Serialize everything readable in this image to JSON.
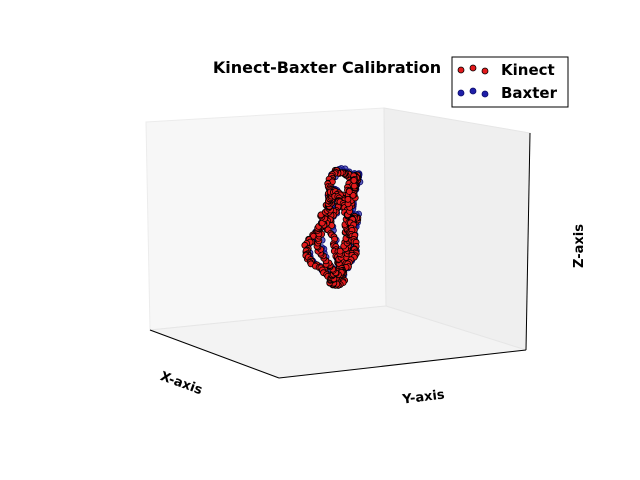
{
  "chart_data": {
    "type": "scatter",
    "projection": "3d",
    "title": "Kinect-Baxter Calibration",
    "xlabel": "X-axis",
    "ylabel": "Y-axis",
    "zlabel": "Z-axis",
    "grid": false,
    "tick_labels_visible": false,
    "legend": "top-right",
    "xlim": [
      -1,
      1
    ],
    "ylim": [
      -1,
      1
    ],
    "zlim": [
      -1,
      1
    ],
    "series": [
      {
        "name": "Kinect",
        "color": "#e31a1c",
        "edge": "#000000",
        "marker": "circle"
      },
      {
        "name": "Baxter",
        "color": "#1f1fa8",
        "edge": "#0a0a6a",
        "marker": "circle"
      }
    ],
    "trajectory": {
      "description": "continuous calibration path sampled by both sensors",
      "points": [
        [
          -0.05,
          0.1,
          0.55
        ],
        [
          0.05,
          0.12,
          0.62
        ],
        [
          0.15,
          0.15,
          0.66
        ],
        [
          0.25,
          0.2,
          0.64
        ],
        [
          0.35,
          0.28,
          0.55
        ],
        [
          0.42,
          0.35,
          0.4
        ],
        [
          0.46,
          0.4,
          0.2
        ],
        [
          0.47,
          0.45,
          0.0
        ],
        [
          0.48,
          0.5,
          -0.15
        ],
        [
          0.5,
          0.55,
          -0.28
        ],
        [
          0.45,
          0.45,
          -0.35
        ],
        [
          0.35,
          0.3,
          -0.38
        ],
        [
          0.2,
          0.15,
          -0.4
        ],
        [
          0.05,
          0.05,
          -0.4
        ],
        [
          -0.1,
          -0.05,
          -0.38
        ],
        [
          -0.25,
          -0.15,
          -0.3
        ],
        [
          -0.35,
          -0.25,
          -0.15
        ],
        [
          -0.4,
          -0.3,
          0.0
        ],
        [
          -0.42,
          -0.3,
          0.15
        ],
        [
          -0.4,
          -0.25,
          0.3
        ],
        [
          -0.32,
          -0.15,
          0.42
        ],
        [
          -0.22,
          -0.05,
          0.5
        ],
        [
          -0.12,
          0.05,
          0.54
        ],
        [
          -0.05,
          0.1,
          0.55
        ],
        [
          -0.05,
          0.05,
          0.4
        ],
        [
          -0.02,
          0.0,
          0.25
        ],
        [
          0.05,
          -0.05,
          0.1
        ],
        [
          0.15,
          -0.05,
          0.0
        ],
        [
          0.25,
          0.0,
          -0.08
        ],
        [
          0.35,
          0.1,
          -0.15
        ],
        [
          0.4,
          0.25,
          -0.22
        ],
        [
          0.45,
          0.4,
          -0.3
        ],
        [
          0.35,
          0.35,
          -0.25
        ],
        [
          0.2,
          0.25,
          -0.12
        ],
        [
          0.05,
          0.15,
          0.0
        ],
        [
          -0.1,
          0.05,
          0.08
        ],
        [
          -0.22,
          -0.05,
          0.12
        ],
        [
          -0.28,
          -0.15,
          0.05
        ],
        [
          -0.25,
          -0.1,
          -0.1
        ],
        [
          -0.15,
          0.0,
          -0.22
        ],
        [
          0.0,
          0.1,
          -0.3
        ],
        [
          0.12,
          0.15,
          -0.35
        ],
        [
          0.15,
          0.05,
          -0.25
        ],
        [
          0.1,
          -0.05,
          -0.1
        ],
        [
          0.05,
          -0.1,
          0.05
        ],
        [
          0.05,
          -0.05,
          0.2
        ],
        [
          0.1,
          0.05,
          0.3
        ],
        [
          0.15,
          0.1,
          0.4
        ],
        [
          0.1,
          0.05,
          0.45
        ],
        [
          0.0,
          0.0,
          0.4
        ],
        [
          -0.08,
          -0.05,
          0.3
        ],
        [
          -0.1,
          0.0,
          0.15
        ]
      ]
    }
  }
}
